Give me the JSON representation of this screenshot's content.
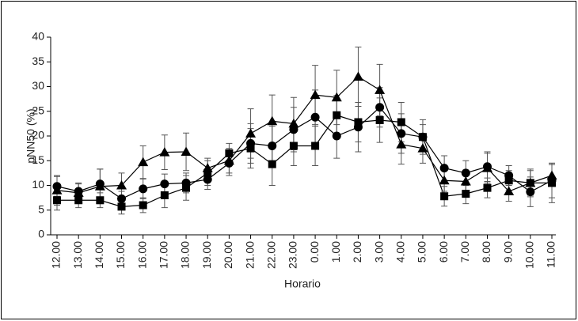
{
  "chart_data": {
    "type": "line",
    "y_label": "pNN50 (%)",
    "x_label": "Horario",
    "categories": [
      "12.00",
      "13.00",
      "14.00",
      "15.00",
      "16.00",
      "17.00",
      "18.00",
      "19.00",
      "20.00",
      "21.00",
      "22.00",
      "23.00",
      "0.00",
      "1.00",
      "2.00",
      "3.00",
      "4.00",
      "5.00",
      "6.00",
      "7.00",
      "8.00",
      "9.00",
      "10.00",
      "11.00"
    ],
    "ylim": [
      0,
      40
    ],
    "yticks": [
      0,
      5,
      10,
      15,
      20,
      25,
      30,
      35,
      40
    ],
    "series": [
      {
        "marker": "circle",
        "color": "#000000",
        "values": [
          9.8,
          8.8,
          10.3,
          7.3,
          9.3,
          10.3,
          10.5,
          11.2,
          14.5,
          18.5,
          18,
          21.3,
          23.8,
          20,
          21.8,
          25.8,
          20.5,
          19.8,
          13.5,
          12.5,
          13.8,
          12,
          8.7,
          11
        ],
        "errors": [
          2,
          1.5,
          3,
          1.5,
          2,
          2,
          2,
          2,
          2.5,
          4,
          4,
          4.5,
          5.5,
          4.5,
          5,
          4,
          4,
          2.5,
          2.5,
          2.5,
          3,
          2,
          3,
          3.5
        ]
      },
      {
        "marker": "square",
        "color": "#000000",
        "values": [
          7,
          7,
          7,
          5.7,
          6,
          8,
          9.5,
          12.5,
          16.5,
          17.5,
          14.3,
          18,
          18,
          24.2,
          22.8,
          23.2,
          22.8,
          19.8,
          7.8,
          8.3,
          9.5,
          11,
          10.5,
          10.5
        ],
        "errors": [
          2,
          1.5,
          1.5,
          1.5,
          1.5,
          2.5,
          2.5,
          2.5,
          2,
          4,
          4.3,
          4,
          4,
          4,
          4,
          4.5,
          4,
          3.5,
          2,
          2,
          2,
          2,
          2.5,
          4
        ]
      },
      {
        "marker": "triangle",
        "color": "#000000",
        "values": [
          9,
          8.5,
          9.8,
          10,
          14.7,
          16.7,
          16.8,
          13.5,
          15,
          20.5,
          23,
          22.5,
          28.3,
          27.8,
          32,
          29.3,
          18.3,
          17.5,
          11,
          10.8,
          13.5,
          8.8,
          10.5,
          12
        ],
        "errors": [
          3,
          2,
          3.5,
          2.5,
          3.3,
          3.5,
          3.8,
          2,
          2.5,
          5,
          5.3,
          5.3,
          6,
          5.5,
          6,
          5.2,
          4,
          3,
          2.2,
          2.3,
          3,
          2,
          2.8,
          2.2
        ]
      }
    ]
  }
}
